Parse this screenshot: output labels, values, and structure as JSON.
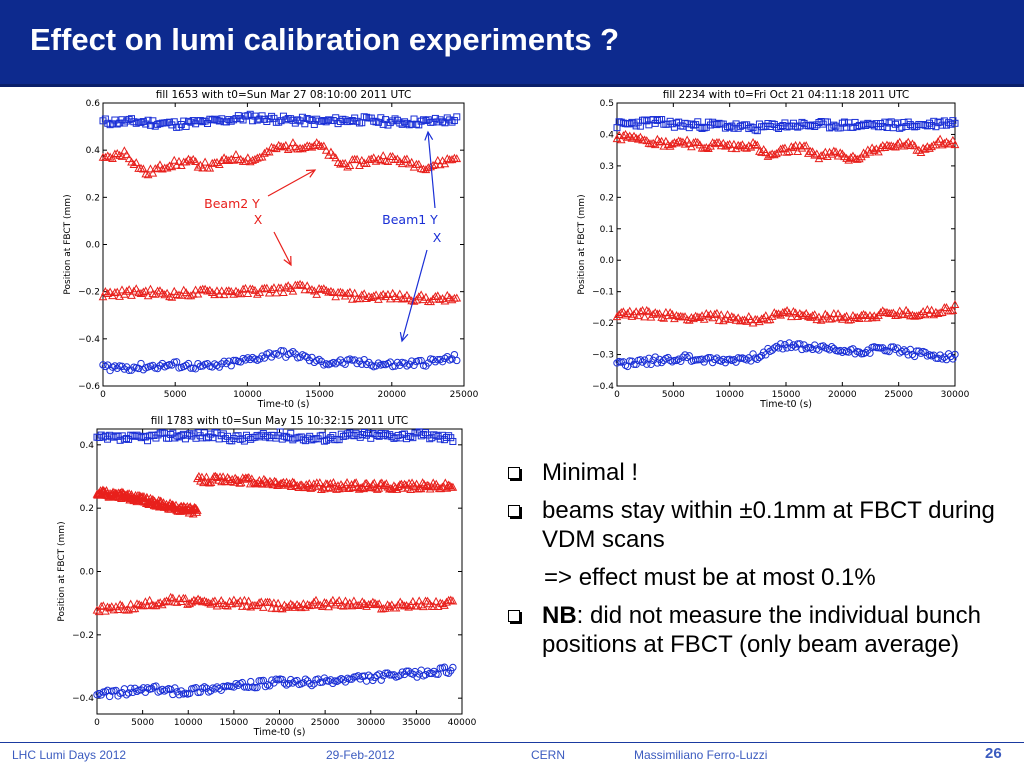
{
  "slide_title": "Effect on lumi calibration experiments ?",
  "chart_data": [
    {
      "type": "scatter",
      "title": "fill 1653 with t0=Sun Mar 27 08:10:00 2011 UTC",
      "xlabel": "Time-t0 (s)",
      "ylabel": "Position at FBCT (mm)",
      "xlim": [
        0,
        25000
      ],
      "ylim": [
        -0.6,
        0.6
      ],
      "x_ticks": [
        0,
        5000,
        10000,
        15000,
        20000,
        25000
      ],
      "y_ticks": [
        -0.6,
        -0.4,
        -0.2,
        0.0,
        0.2,
        0.4,
        0.6
      ],
      "x_tick_labels": [
        "0",
        "5000",
        "10000",
        "15000",
        "20000",
        "25000"
      ],
      "y_tick_labels": [
        "−0.6",
        "−0.4",
        "−0.2",
        "0.0",
        "0.2",
        "0.4",
        "0.6"
      ],
      "grid": false,
      "annotations": [
        {
          "line1": "Beam2 Y",
          "line2": "X",
          "color": "#e8201c"
        },
        {
          "line1": "Beam1 Y",
          "line2": "X",
          "color": "#1a2fd6"
        }
      ],
      "series": [
        {
          "color": "#1a2fd6",
          "marker": "square",
          "x": [
            0,
            2500,
            5000,
            7500,
            10000,
            12500,
            15000,
            17500,
            20000,
            22500,
            24500
          ],
          "y": [
            0.52,
            0.52,
            0.51,
            0.52,
            0.54,
            0.53,
            0.52,
            0.53,
            0.52,
            0.52,
            0.53
          ]
        },
        {
          "color": "#e8201c",
          "marker": "triangle",
          "x": [
            0,
            1500,
            3000,
            4500,
            6000,
            7500,
            9000,
            10500,
            12000,
            13500,
            15000,
            16500,
            18000,
            19500,
            21000,
            22500,
            24500
          ],
          "y": [
            0.36,
            0.39,
            0.3,
            0.34,
            0.35,
            0.33,
            0.37,
            0.36,
            0.41,
            0.42,
            0.42,
            0.34,
            0.35,
            0.37,
            0.35,
            0.33,
            0.37
          ]
        },
        {
          "color": "#e8201c",
          "marker": "triangle",
          "x": [
            0,
            2500,
            5000,
            7500,
            10000,
            12500,
            13500,
            15000,
            17500,
            20000,
            22500,
            24500
          ],
          "y": [
            -0.21,
            -0.2,
            -0.21,
            -0.2,
            -0.2,
            -0.19,
            -0.18,
            -0.2,
            -0.22,
            -0.22,
            -0.23,
            -0.23
          ]
        },
        {
          "color": "#1a2fd6",
          "marker": "circle",
          "x": [
            0,
            2500,
            5000,
            7500,
            10000,
            12000,
            13500,
            15000,
            17500,
            20000,
            22500,
            24500
          ],
          "y": [
            -0.52,
            -0.52,
            -0.51,
            -0.52,
            -0.49,
            -0.46,
            -0.47,
            -0.5,
            -0.5,
            -0.51,
            -0.5,
            -0.48
          ]
        }
      ]
    },
    {
      "type": "scatter",
      "title": "fill 2234 with t0=Fri Oct 21 04:11:18 2011 UTC",
      "xlabel": "Time-t0 (s)",
      "ylabel": "Position at FBCT (mm)",
      "xlim": [
        0,
        30000
      ],
      "ylim": [
        -0.4,
        0.5
      ],
      "x_ticks": [
        0,
        5000,
        10000,
        15000,
        20000,
        25000,
        30000
      ],
      "y_ticks": [
        -0.4,
        -0.3,
        -0.2,
        -0.1,
        0.0,
        0.1,
        0.2,
        0.3,
        0.4,
        0.5
      ],
      "x_tick_labels": [
        "0",
        "5000",
        "10000",
        "15000",
        "20000",
        "25000",
        "30000"
      ],
      "y_tick_labels": [
        "−0.4",
        "−0.3",
        "−0.2",
        "−0.1",
        "0.0",
        "0.1",
        "0.2",
        "0.3",
        "0.4",
        "0.5"
      ],
      "grid": false,
      "series": [
        {
          "color": "#1a2fd6",
          "marker": "square",
          "x": [
            0,
            3000,
            6000,
            9000,
            12000,
            15000,
            18000,
            21000,
            24000,
            27000,
            30000
          ],
          "y": [
            0.43,
            0.44,
            0.43,
            0.43,
            0.42,
            0.43,
            0.43,
            0.43,
            0.43,
            0.43,
            0.44
          ]
        },
        {
          "color": "#e8201c",
          "marker": "triangle",
          "x": [
            0,
            1500,
            3000,
            4500,
            6000,
            7500,
            9000,
            10500,
            12000,
            13500,
            15000,
            16500,
            18000,
            19500,
            21000,
            22500,
            24000,
            25500,
            27000,
            28500,
            30000
          ],
          "y": [
            0.39,
            0.4,
            0.38,
            0.37,
            0.38,
            0.36,
            0.37,
            0.36,
            0.37,
            0.33,
            0.35,
            0.36,
            0.33,
            0.34,
            0.32,
            0.35,
            0.36,
            0.37,
            0.35,
            0.38,
            0.37
          ]
        },
        {
          "color": "#e8201c",
          "marker": "triangle",
          "x": [
            0,
            3000,
            6000,
            9000,
            12000,
            15000,
            18000,
            21000,
            24000,
            27000,
            30000
          ],
          "y": [
            -0.17,
            -0.17,
            -0.18,
            -0.18,
            -0.19,
            -0.17,
            -0.18,
            -0.18,
            -0.17,
            -0.17,
            -0.15
          ]
        },
        {
          "color": "#1a2fd6",
          "marker": "circle",
          "x": [
            0,
            3000,
            6000,
            9000,
            12000,
            15000,
            18000,
            21000,
            24000,
            27000,
            30000
          ],
          "y": [
            -0.33,
            -0.32,
            -0.31,
            -0.32,
            -0.31,
            -0.27,
            -0.28,
            -0.29,
            -0.28,
            -0.3,
            -0.31
          ]
        }
      ]
    },
    {
      "type": "scatter",
      "title": "fill 1783 with t0=Sun May 15 10:32:15 2011 UTC",
      "xlabel": "Time-t0 (s)",
      "ylabel": "Position at FBCT (mm)",
      "xlim": [
        0,
        40000
      ],
      "ylim": [
        -0.45,
        0.45
      ],
      "x_ticks": [
        0,
        5000,
        10000,
        15000,
        20000,
        25000,
        30000,
        35000,
        40000
      ],
      "y_ticks": [
        -0.4,
        -0.2,
        0.0,
        0.2,
        0.4
      ],
      "x_tick_labels": [
        "0",
        "5000",
        "10000",
        "15000",
        "20000",
        "25000",
        "30000",
        "35000",
        "40000"
      ],
      "y_tick_labels": [
        "−0.4",
        "−0.2",
        "0.0",
        "0.2",
        "0.4"
      ],
      "grid": false,
      "series": [
        {
          "color": "#1a2fd6",
          "marker": "square",
          "x": [
            0,
            4000,
            8000,
            12000,
            16000,
            20000,
            24000,
            28000,
            32000,
            36000,
            39000
          ],
          "y": [
            0.42,
            0.42,
            0.43,
            0.43,
            0.42,
            0.43,
            0.42,
            0.43,
            0.43,
            0.43,
            0.42
          ]
        },
        {
          "color": "#e8201c",
          "marker": "triangle",
          "x": [
            0,
            3000,
            6000,
            9000,
            11000
          ],
          "y": [
            0.25,
            0.24,
            0.22,
            0.2,
            0.19
          ]
        },
        {
          "color": "#e8201c",
          "marker": "triangle",
          "x": [
            11000,
            15000,
            19000,
            23000,
            27000,
            31000,
            35000,
            39000
          ],
          "y": [
            0.29,
            0.29,
            0.28,
            0.27,
            0.27,
            0.27,
            0.27,
            0.27
          ]
        },
        {
          "color": "#e8201c",
          "marker": "triangle",
          "x": [
            0,
            4000,
            8000,
            12000,
            16000,
            20000,
            24000,
            28000,
            32000,
            36000,
            39000
          ],
          "y": [
            -0.12,
            -0.11,
            -0.09,
            -0.1,
            -0.1,
            -0.11,
            -0.1,
            -0.1,
            -0.11,
            -0.1,
            -0.1
          ]
        },
        {
          "color": "#1a2fd6",
          "marker": "circle",
          "x": [
            0,
            3000,
            6000,
            9000,
            12000,
            16000,
            20000,
            24000,
            28000,
            32000,
            36000,
            39000
          ],
          "y": [
            -0.39,
            -0.38,
            -0.37,
            -0.38,
            -0.37,
            -0.36,
            -0.35,
            -0.35,
            -0.34,
            -0.33,
            -0.32,
            -0.31
          ]
        }
      ]
    }
  ],
  "bullets": [
    {
      "marker": true,
      "bold": "",
      "text": "Minimal !"
    },
    {
      "marker": true,
      "bold": "",
      "text": "beams stay within ±0.1mm at FBCT during VDM scans"
    },
    {
      "marker": false,
      "bold": "",
      "text": "=> effect must be at most 0.1%"
    },
    {
      "marker": true,
      "bold": "NB",
      "text": ": did not measure the individual bunch positions at FBCT (only beam average)"
    }
  ],
  "footer": {
    "event": "LHC Lumi Days 2012",
    "date": "29-Feb-2012",
    "org": "CERN",
    "author": "Massimiliano Ferro-Luzzi",
    "page": "26"
  }
}
